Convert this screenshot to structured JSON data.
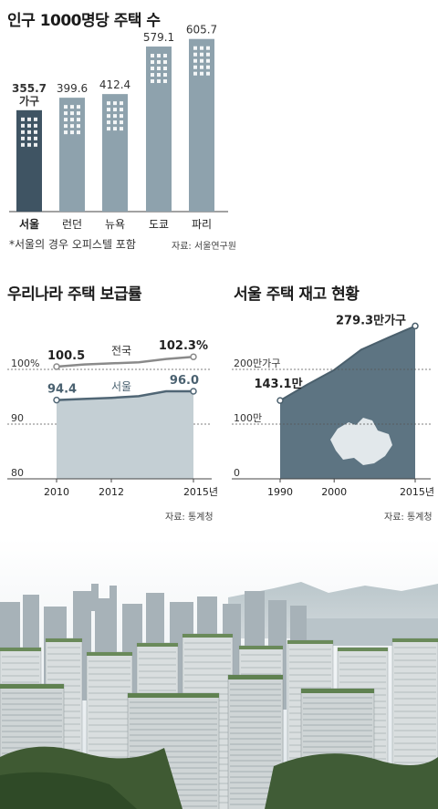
{
  "chart_data": [
    {
      "type": "bar",
      "title": "인구 1000명당 주택 수",
      "categories": [
        "서울",
        "런던",
        "뉴욕",
        "도쿄",
        "파리"
      ],
      "values": [
        355.7,
        399.6,
        412.4,
        579.1,
        605.7
      ],
      "value_labels": [
        "355.7",
        "399.6",
        "412.4",
        "579.1",
        "605.7"
      ],
      "unit_label": "가구",
      "footnote": "*서울의 경우 오피스텔 포함",
      "source": "자료: 서울연구원",
      "colors": {
        "highlight": "#3f5463",
        "default": "#8ea2ad"
      }
    },
    {
      "type": "line",
      "title": "우리나라 주택 보급률",
      "x": [
        2010,
        2011,
        2012,
        2013,
        2014,
        2015
      ],
      "x_tick_labels": [
        "2010",
        "2012",
        "2015년"
      ],
      "x_tick_values": [
        2010,
        2012,
        2015
      ],
      "y_tick_labels": [
        "100%",
        "90",
        "80"
      ],
      "y_tick_values": [
        100,
        90,
        80
      ],
      "ylim": [
        80,
        105
      ],
      "series": [
        {
          "name": "전국",
          "values": [
            100.5,
            100.9,
            101.1,
            101.3,
            101.9,
            102.3
          ],
          "start_label": "100.5",
          "end_label": "102.3%",
          "color": "#8a8a8a"
        },
        {
          "name": "서울",
          "values": [
            94.4,
            94.6,
            94.8,
            95.1,
            96.0,
            96.0
          ],
          "start_label": "94.4",
          "end_label": "96.0",
          "color": "#506675"
        }
      ],
      "source": "자료: 통계청"
    },
    {
      "type": "area",
      "title": "서울 주택 재고 현황",
      "x": [
        1990,
        1995,
        2000,
        2005,
        2010,
        2015
      ],
      "values": [
        143.1,
        172,
        199,
        236,
        258,
        279.3
      ],
      "x_tick_labels": [
        "1990",
        "2000",
        "2015년"
      ],
      "x_tick_values": [
        1990,
        2000,
        2015
      ],
      "y_tick_labels": [
        "200만가구",
        "100만",
        "0"
      ],
      "y_tick_values": [
        200,
        100,
        0
      ],
      "ylim": [
        0,
        300
      ],
      "start_label": "143.1만",
      "end_label": "279.3만가구",
      "source": "자료: 통계청",
      "color": "#5d7482"
    }
  ]
}
